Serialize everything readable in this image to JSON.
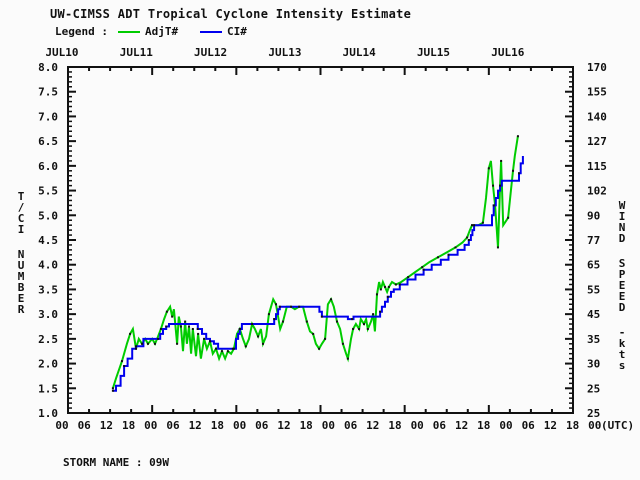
{
  "title": "UW-CIMSS ADT Tropical Cyclone Intensity Estimate",
  "legend": {
    "label": "Legend :",
    "series": [
      {
        "name": "AdjT#",
        "color": "#00cc00"
      },
      {
        "name": "CI#",
        "color": "#0000ee"
      }
    ]
  },
  "storm_name_label": "STORM NAME : 09W",
  "colors": {
    "adjt_line": "#00cc00",
    "ci_line": "#0000ee",
    "marker": "#111111",
    "frame": "#111111"
  },
  "chart_data": {
    "type": "line",
    "title": "UW-CIMSS ADT Tropical Cyclone Intensity Estimate",
    "x_axis": {
      "top_labels": [
        "JUL10",
        "JUL11",
        "JUL12",
        "JUL13",
        "JUL14",
        "JUL15",
        "JUL16"
      ],
      "bottom_labels": [
        "00",
        "06",
        "12",
        "18",
        "00",
        "06",
        "12",
        "18",
        "00",
        "06",
        "12",
        "18",
        "00",
        "06",
        "12",
        "18",
        "00",
        "06",
        "12",
        "18",
        "00",
        "06",
        "12",
        "18",
        "00"
      ],
      "utc_suffix": "(UTC)",
      "units": "hours since JUL10 00 UTC",
      "range_hours": [
        0,
        144
      ]
    },
    "y_axis_left": {
      "label_lines": [
        "T/CI",
        "NUMBER"
      ],
      "ticks": [
        "8.0",
        "7.5",
        "7.0",
        "6.5",
        "6.0",
        "5.5",
        "5.0",
        "4.5",
        "4.0",
        "3.5",
        "3.0",
        "2.5",
        "2.0",
        "1.5",
        "1.0"
      ],
      "range": [
        1.0,
        8.0
      ],
      "minor_step": 0.1
    },
    "y_axis_right": {
      "label_lines": [
        "WIND",
        "SPEED",
        "-kts"
      ],
      "tick_labels": [
        "170",
        "155",
        "140",
        "127",
        "115",
        "102",
        "90",
        "77",
        "65",
        "55",
        "45",
        "35",
        "30",
        "25",
        "25"
      ]
    },
    "grid": false,
    "legend_position": "top",
    "series": [
      {
        "name": "AdjT#",
        "color": "#00cc00",
        "style": "jagged-line",
        "points": [
          [
            12.8,
            1.5
          ],
          [
            13.7,
            1.7
          ],
          [
            15.4,
            2.05
          ],
          [
            16.8,
            2.4
          ],
          [
            17.7,
            2.6
          ],
          [
            18.5,
            2.7
          ],
          [
            19.4,
            2.3
          ],
          [
            20.2,
            2.5
          ],
          [
            21.1,
            2.4
          ],
          [
            22.0,
            2.5
          ],
          [
            22.8,
            2.4
          ],
          [
            24.0,
            2.5
          ],
          [
            24.8,
            2.4
          ],
          [
            25.7,
            2.55
          ],
          [
            26.5,
            2.7
          ],
          [
            27.4,
            2.9
          ],
          [
            28.2,
            3.05
          ],
          [
            29.1,
            3.15
          ],
          [
            29.7,
            2.95
          ],
          [
            30.2,
            3.1
          ],
          [
            31.1,
            2.4
          ],
          [
            31.6,
            2.95
          ],
          [
            32.2,
            2.75
          ],
          [
            32.8,
            2.25
          ],
          [
            33.4,
            2.85
          ],
          [
            33.9,
            2.4
          ],
          [
            34.5,
            2.75
          ],
          [
            35.1,
            2.2
          ],
          [
            35.6,
            2.7
          ],
          [
            36.5,
            2.15
          ],
          [
            37.1,
            2.6
          ],
          [
            37.9,
            2.1
          ],
          [
            38.8,
            2.5
          ],
          [
            39.6,
            2.3
          ],
          [
            40.5,
            2.45
          ],
          [
            41.3,
            2.2
          ],
          [
            42.2,
            2.3
          ],
          [
            43.1,
            2.1
          ],
          [
            43.9,
            2.25
          ],
          [
            44.8,
            2.1
          ],
          [
            45.6,
            2.25
          ],
          [
            46.5,
            2.2
          ],
          [
            47.3,
            2.3
          ],
          [
            48.2,
            2.6
          ],
          [
            49.0,
            2.7
          ],
          [
            49.9,
            2.5
          ],
          [
            50.7,
            2.35
          ],
          [
            51.6,
            2.5
          ],
          [
            52.5,
            2.8
          ],
          [
            53.3,
            2.7
          ],
          [
            54.2,
            2.55
          ],
          [
            55.0,
            2.7
          ],
          [
            55.6,
            2.4
          ],
          [
            56.5,
            2.55
          ],
          [
            57.3,
            3.0
          ],
          [
            58.5,
            3.3
          ],
          [
            59.3,
            3.2
          ],
          [
            60.5,
            2.7
          ],
          [
            61.3,
            2.85
          ],
          [
            62.4,
            3.15
          ],
          [
            63.6,
            3.15
          ],
          [
            64.7,
            3.1
          ],
          [
            65.9,
            3.15
          ],
          [
            67.0,
            3.15
          ],
          [
            68.1,
            2.85
          ],
          [
            69.0,
            2.65
          ],
          [
            69.9,
            2.6
          ],
          [
            70.7,
            2.4
          ],
          [
            71.6,
            2.3
          ],
          [
            72.4,
            2.4
          ],
          [
            73.3,
            2.5
          ],
          [
            74.1,
            3.2
          ],
          [
            75.0,
            3.3
          ],
          [
            75.8,
            3.15
          ],
          [
            76.7,
            2.85
          ],
          [
            77.6,
            2.7
          ],
          [
            78.4,
            2.4
          ],
          [
            79.3,
            2.2
          ],
          [
            79.8,
            2.1
          ],
          [
            80.7,
            2.5
          ],
          [
            81.3,
            2.7
          ],
          [
            82.1,
            2.8
          ],
          [
            83.0,
            2.7
          ],
          [
            83.5,
            2.9
          ],
          [
            84.4,
            2.8
          ],
          [
            85.0,
            2.9
          ],
          [
            85.5,
            2.7
          ],
          [
            86.4,
            2.85
          ],
          [
            87.0,
            3.0
          ],
          [
            87.5,
            2.65
          ],
          [
            88.1,
            3.4
          ],
          [
            88.7,
            3.65
          ],
          [
            89.2,
            3.5
          ],
          [
            89.8,
            3.65
          ],
          [
            90.4,
            3.55
          ],
          [
            91.0,
            3.45
          ],
          [
            91.5,
            3.55
          ],
          [
            92.4,
            3.65
          ],
          [
            93.5,
            3.6
          ],
          [
            95.0,
            3.65
          ],
          [
            97.0,
            3.75
          ],
          [
            99.0,
            3.85
          ],
          [
            101.0,
            3.95
          ],
          [
            103.0,
            4.05
          ],
          [
            105.5,
            4.15
          ],
          [
            108.0,
            4.25
          ],
          [
            110.5,
            4.35
          ],
          [
            112.5,
            4.45
          ],
          [
            113.8,
            4.55
          ],
          [
            114.6,
            4.7
          ],
          [
            115.2,
            4.8
          ],
          [
            117.0,
            4.8
          ],
          [
            118.3,
            4.85
          ],
          [
            119.2,
            5.35
          ],
          [
            120.0,
            5.95
          ],
          [
            120.6,
            6.1
          ],
          [
            121.2,
            5.6
          ],
          [
            121.8,
            5.2
          ],
          [
            122.6,
            4.35
          ],
          [
            123.2,
            5.6
          ],
          [
            123.5,
            6.1
          ],
          [
            124.1,
            4.8
          ],
          [
            125.5,
            4.95
          ],
          [
            126.3,
            5.5
          ],
          [
            126.9,
            5.9
          ],
          [
            127.4,
            6.2
          ],
          [
            128.3,
            6.6
          ]
        ]
      },
      {
        "name": "CI#",
        "color": "#0000ee",
        "style": "step-line",
        "points": [
          [
            12.8,
            1.45
          ],
          [
            13.7,
            1.55
          ],
          [
            15.0,
            1.75
          ],
          [
            16.0,
            1.95
          ],
          [
            17.0,
            2.1
          ],
          [
            18.3,
            2.3
          ],
          [
            19.4,
            2.35
          ],
          [
            21.3,
            2.35
          ],
          [
            21.5,
            2.5
          ],
          [
            25.7,
            2.5
          ],
          [
            26.3,
            2.6
          ],
          [
            27.1,
            2.7
          ],
          [
            28.0,
            2.75
          ],
          [
            28.8,
            2.8
          ],
          [
            36.5,
            2.8
          ],
          [
            37.0,
            2.7
          ],
          [
            38.2,
            2.6
          ],
          [
            39.4,
            2.5
          ],
          [
            40.5,
            2.45
          ],
          [
            41.6,
            2.4
          ],
          [
            42.8,
            2.3
          ],
          [
            47.0,
            2.3
          ],
          [
            47.9,
            2.5
          ],
          [
            48.5,
            2.6
          ],
          [
            49.0,
            2.7
          ],
          [
            49.6,
            2.8
          ],
          [
            58.2,
            2.8
          ],
          [
            58.8,
            2.9
          ],
          [
            59.3,
            3.0
          ],
          [
            59.9,
            3.1
          ],
          [
            60.4,
            3.15
          ],
          [
            71.3,
            3.15
          ],
          [
            71.7,
            3.05
          ],
          [
            72.4,
            2.95
          ],
          [
            79.3,
            2.95
          ],
          [
            79.8,
            2.9
          ],
          [
            81.0,
            2.9
          ],
          [
            81.4,
            2.95
          ],
          [
            88.4,
            2.95
          ],
          [
            89.0,
            3.05
          ],
          [
            89.5,
            3.15
          ],
          [
            90.4,
            3.25
          ],
          [
            91.2,
            3.35
          ],
          [
            92.1,
            3.45
          ],
          [
            92.9,
            3.5
          ],
          [
            94.6,
            3.6
          ],
          [
            96.8,
            3.7
          ],
          [
            99.1,
            3.8
          ],
          [
            101.4,
            3.9
          ],
          [
            103.7,
            4.0
          ],
          [
            106.3,
            4.1
          ],
          [
            108.5,
            4.2
          ],
          [
            111.1,
            4.3
          ],
          [
            113.1,
            4.4
          ],
          [
            114.3,
            4.5
          ],
          [
            114.9,
            4.6
          ],
          [
            115.3,
            4.7
          ],
          [
            115.8,
            4.8
          ],
          [
            120.3,
            4.8
          ],
          [
            120.9,
            5.0
          ],
          [
            121.4,
            5.2
          ],
          [
            122.0,
            5.35
          ],
          [
            122.6,
            5.5
          ],
          [
            123.2,
            5.6
          ],
          [
            123.7,
            5.7
          ],
          [
            128.0,
            5.7
          ],
          [
            128.6,
            5.85
          ],
          [
            129.1,
            6.05
          ],
          [
            129.7,
            6.2
          ]
        ]
      }
    ]
  }
}
